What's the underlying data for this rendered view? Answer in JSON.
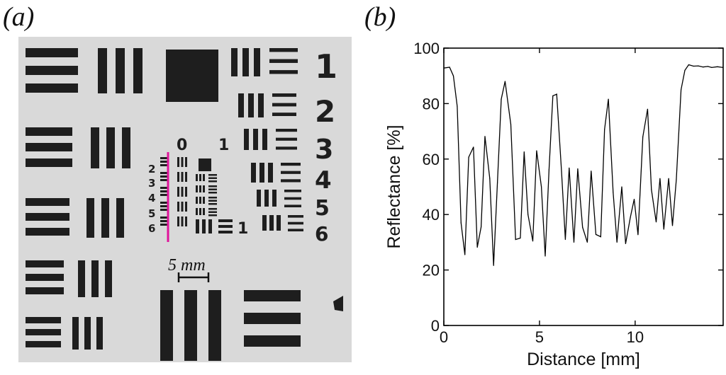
{
  "figure": {
    "panel_a_label": "(a)",
    "panel_b_label": "(b)",
    "scale_bar_label": "5 mm",
    "group_numbers_large": [
      "1",
      "2",
      "3",
      "4",
      "5",
      "6"
    ],
    "group_numbers_small_right": [
      "1",
      "2",
      "3",
      "4",
      "5",
      "6"
    ],
    "group_numbers_small_left": [
      "2",
      "3",
      "4",
      "5",
      "6"
    ],
    "group_headers": [
      "0",
      "1"
    ],
    "profile_line_color": "#e0139a"
  },
  "chart_data": {
    "type": "line",
    "xlabel": "Distance [mm]",
    "ylabel": "Reflectance [%]",
    "xlim": [
      0,
      14.6
    ],
    "ylim": [
      0,
      100
    ],
    "xticks": [
      0,
      5,
      10
    ],
    "yticks": [
      0,
      20,
      40,
      60,
      80,
      100
    ],
    "grid": false,
    "series": [
      {
        "color": "#000000",
        "x": [
          0,
          0.3,
          0.5,
          0.7,
          0.9,
          1.1,
          1.3,
          1.55,
          1.75,
          1.95,
          2.15,
          2.4,
          2.6,
          2.8,
          3.0,
          3.2,
          3.5,
          3.75,
          4.0,
          4.2,
          4.4,
          4.65,
          4.85,
          5.1,
          5.3,
          5.5,
          5.7,
          5.9,
          6.15,
          6.35,
          6.55,
          6.8,
          7.0,
          7.25,
          7.5,
          7.7,
          7.95,
          8.2,
          8.4,
          8.6,
          8.85,
          9.05,
          9.3,
          9.5,
          9.75,
          9.95,
          10.15,
          10.4,
          10.65,
          10.85,
          11.1,
          11.3,
          11.5,
          11.75,
          11.95,
          12.15,
          12.4,
          12.6,
          12.8,
          13.05,
          13.3,
          13.55,
          13.8,
          14.0,
          14.3,
          14.6
        ],
        "y": [
          92.8,
          93.1,
          90.0,
          79.0,
          37.0,
          25.5,
          60.7,
          64.3,
          28.2,
          35.5,
          68.2,
          53.0,
          21.6,
          51.5,
          81.6,
          88.0,
          72.5,
          31.0,
          31.5,
          62.6,
          40.0,
          30.4,
          63.0,
          50.0,
          25.0,
          56.2,
          82.8,
          83.4,
          55.6,
          31.0,
          56.8,
          30.0,
          56.5,
          35.4,
          30.0,
          55.7,
          32.8,
          32.0,
          70.7,
          81.6,
          48.0,
          30.0,
          50.0,
          29.5,
          39.0,
          45.5,
          32.7,
          68.0,
          78.0,
          49.0,
          37.3,
          53.0,
          34.7,
          53.0,
          36.0,
          52.5,
          85.0,
          92.0,
          94.0,
          93.5,
          93.6,
          93.2,
          93.4,
          93.0,
          93.3,
          93.0
        ]
      }
    ]
  }
}
